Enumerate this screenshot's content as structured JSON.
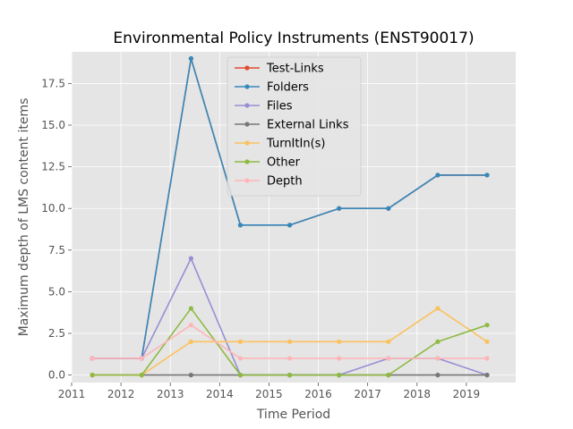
{
  "chart_data": {
    "type": "line",
    "title": "Environmental Policy Instruments (ENST90017)",
    "xlabel": "Time Period",
    "ylabel": "Maximum depth of LMS content items",
    "x": [
      2011.42,
      2012.42,
      2013.42,
      2014.42,
      2015.42,
      2016.42,
      2017.42,
      2018.42,
      2019.42
    ],
    "xlim": [
      2011.0,
      2020.0
    ],
    "ylim": [
      -0.45,
      19.4
    ],
    "xticks": [
      "2011",
      "2012",
      "2013",
      "2014",
      "2015",
      "2016",
      "2017",
      "2018",
      "2019"
    ],
    "yticks": [
      "0.0",
      "2.5",
      "5.0",
      "7.5",
      "10.0",
      "12.5",
      "15.0",
      "17.5"
    ],
    "grid": true,
    "legend_position": "top-center",
    "background": "#e5e5e5",
    "series": [
      {
        "name": "Test-Links",
        "color": "#e24a33",
        "values": [
          1,
          1,
          19,
          9,
          9,
          10,
          10,
          12,
          12
        ]
      },
      {
        "name": "Folders",
        "color": "#348abd",
        "values": [
          1,
          1,
          19,
          9,
          9,
          10,
          10,
          12,
          12
        ]
      },
      {
        "name": "Files",
        "color": "#988ed5",
        "values": [
          1,
          1,
          7,
          0,
          0,
          0,
          1,
          1,
          0
        ]
      },
      {
        "name": "External Links",
        "color": "#777777",
        "values": [
          0,
          0,
          0,
          0,
          0,
          0,
          0,
          0,
          0
        ]
      },
      {
        "name": "TurnItIn(s)",
        "color": "#fbc15e",
        "values": [
          0,
          0,
          2,
          2,
          2,
          2,
          2,
          4,
          2
        ]
      },
      {
        "name": "Other",
        "color": "#8eba42",
        "values": [
          0,
          0,
          4,
          0,
          0,
          0,
          0,
          2,
          3
        ]
      },
      {
        "name": "Depth",
        "color": "#ffb5b8",
        "values": [
          1,
          1,
          3,
          1,
          1,
          1,
          1,
          1,
          1
        ]
      }
    ]
  }
}
